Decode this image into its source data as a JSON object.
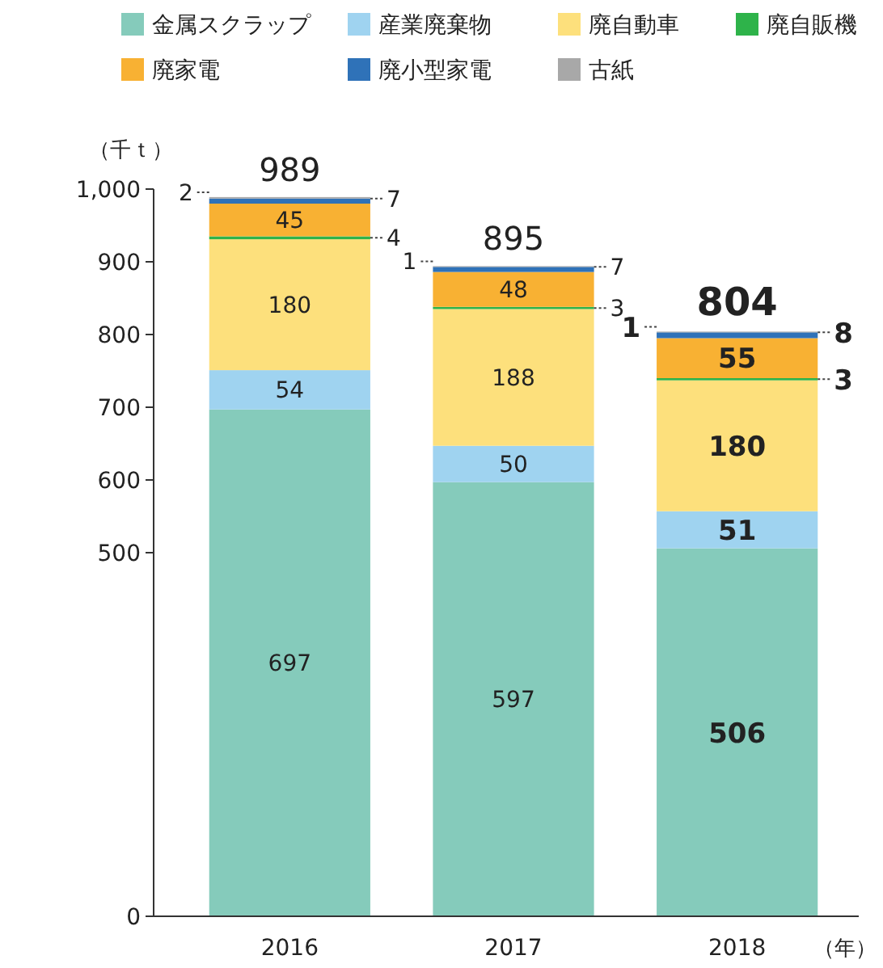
{
  "chart_data": {
    "type": "bar",
    "stacked": true,
    "ylabel": "（千ｔ）",
    "xlabel": "（年）",
    "categories": [
      "2016",
      "2017",
      "2018"
    ],
    "series": [
      {
        "name": "金属スクラップ",
        "color": "#85cbbb",
        "values": [
          697,
          597,
          506
        ]
      },
      {
        "name": "産業廃棄物",
        "color": "#9fd3f0",
        "values": [
          54,
          50,
          51
        ]
      },
      {
        "name": "廃自動車",
        "color": "#fde07c",
        "values": [
          180,
          188,
          180
        ]
      },
      {
        "name": "廃自販機",
        "color": "#2eb34a",
        "values": [
          4,
          3,
          3
        ]
      },
      {
        "name": "廃家電",
        "color": "#f8b133",
        "values": [
          45,
          48,
          55
        ]
      },
      {
        "name": "廃小型家電",
        "color": "#2f72b8",
        "values": [
          7,
          7,
          8
        ]
      },
      {
        "name": "古紙",
        "color": "#a8a8a8",
        "values": [
          2,
          1,
          1
        ]
      }
    ],
    "totals": [
      "989",
      "895",
      "804"
    ],
    "data_labels": true,
    "ylim": [
      0,
      1000
    ],
    "yticks": [
      0,
      500,
      600,
      700,
      800,
      900,
      {
        "value": 1000,
        "label": "1,000"
      }
    ],
    "legend": "top"
  }
}
